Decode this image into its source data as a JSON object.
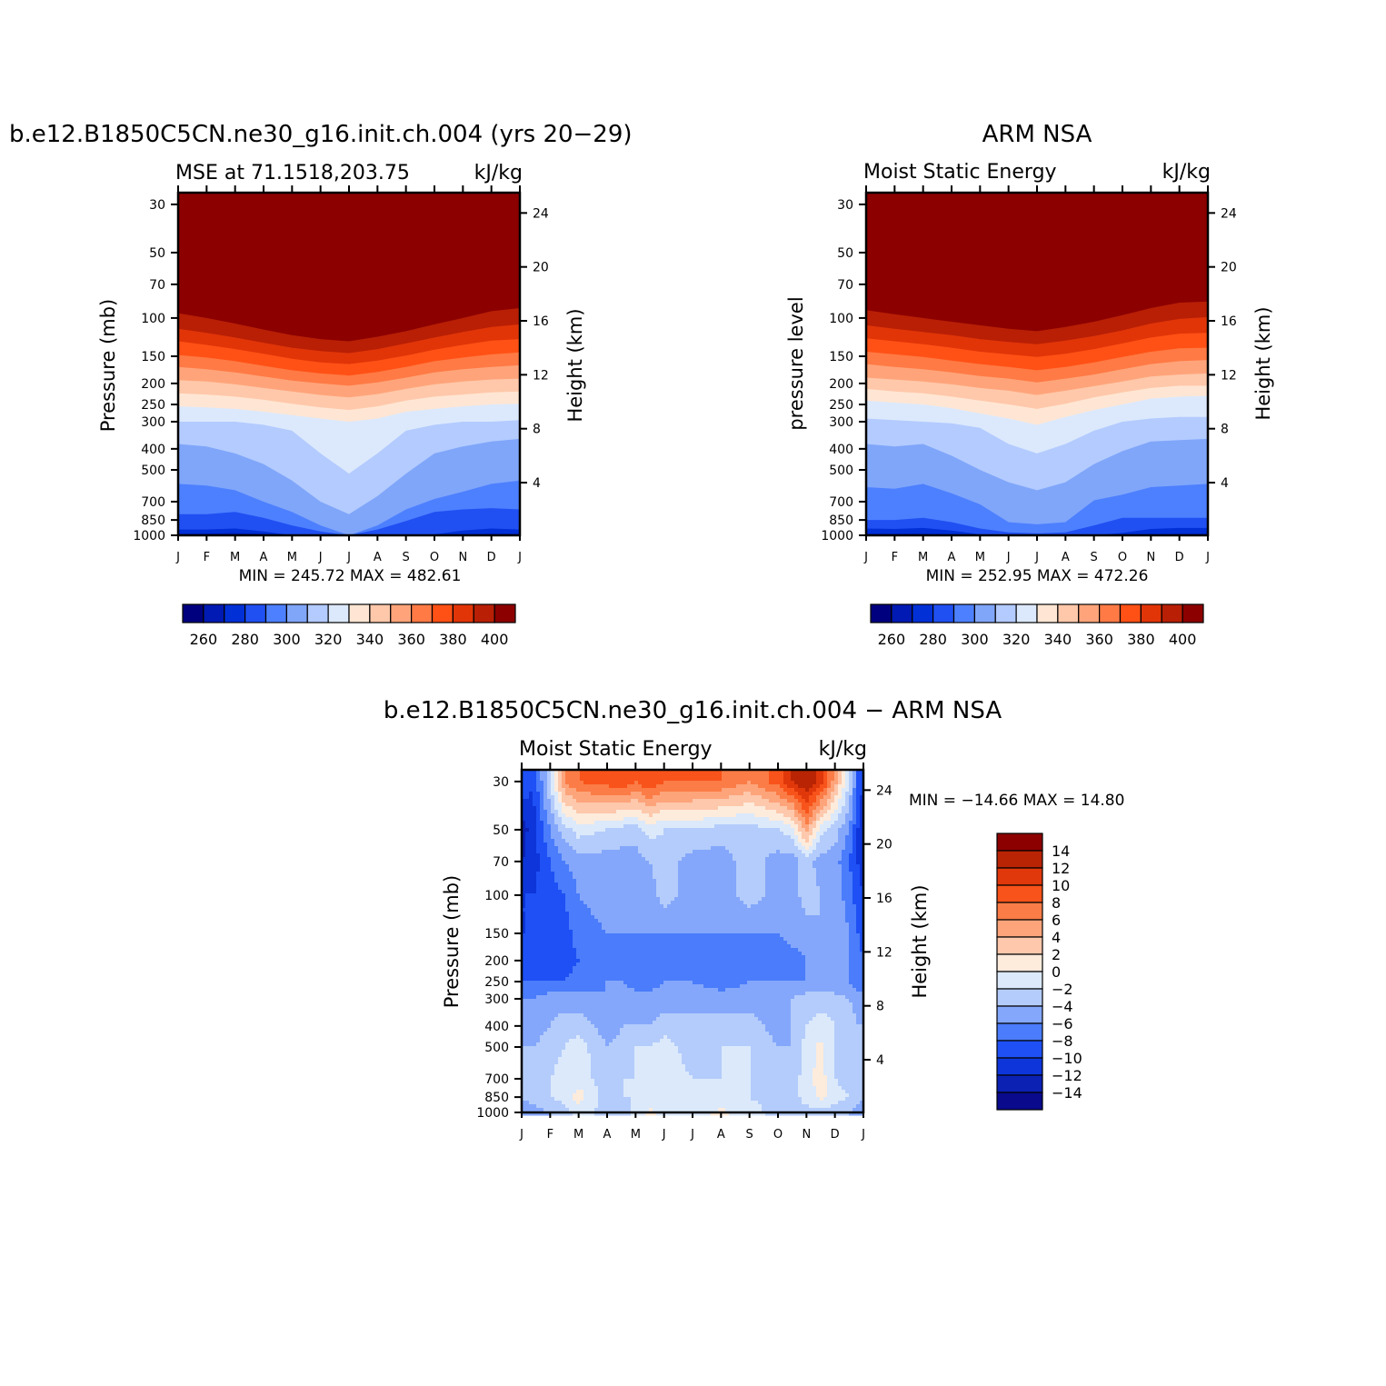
{
  "chart_data": [
    {
      "type": "heatmap",
      "panel": "model",
      "title": "b.e12.B1850C5CN.ne30_g16.init.ch.004 (yrs 20−29)",
      "subtitle_left": "MSE at 71.1518,203.75",
      "subtitle_right": "kJ/kg",
      "ylabel": "Pressure (mb)",
      "ylabel_right": "Height (km)",
      "x_ticks": [
        "J",
        "F",
        "M",
        "A",
        "M",
        "J",
        "J",
        "A",
        "S",
        "O",
        "N",
        "D",
        "J"
      ],
      "y_ticks": [
        "30",
        "50",
        "70",
        "100",
        "150",
        "200",
        "250",
        "300",
        "400",
        "500",
        "700",
        "850",
        "1000"
      ],
      "y2_ticks": [
        "24",
        "20",
        "16",
        "12",
        "8",
        "4"
      ],
      "stats": "MIN =  245.72 MAX =  482.61",
      "colorbar_orientation": "horizontal",
      "colorbar_labels": [
        "260",
        "280",
        "300",
        "320",
        "340",
        "360",
        "380",
        "400"
      ],
      "levels": [
        260,
        270,
        280,
        290,
        300,
        310,
        320,
        330,
        340,
        350,
        360,
        370,
        380,
        390,
        400
      ],
      "boundaries_pressure": [
        [
          1000,
          995,
          990,
          995,
          1000,
          1000,
          1000,
          1000,
          1000,
          1000,
          1000,
          998,
          995
        ],
        [
          985,
          982,
          978,
          985,
          1000,
          1000,
          1000,
          1000,
          1000,
          1000,
          990,
          985,
          985
        ],
        [
          940,
          940,
          930,
          960,
          1000,
          1000,
          1000,
          1000,
          1000,
          990,
          950,
          930,
          940
        ],
        [
          800,
          800,
          780,
          830,
          900,
          960,
          1000,
          940,
          860,
          780,
          760,
          750,
          760
        ],
        [
          580,
          590,
          620,
          700,
          780,
          900,
          1000,
          900,
          760,
          680,
          630,
          580,
          560
        ],
        [
          380,
          390,
          420,
          470,
          560,
          700,
          800,
          660,
          520,
          420,
          390,
          370,
          360
        ],
        [
          300,
          300,
          300,
          310,
          330,
          420,
          520,
          420,
          330,
          310,
          300,
          300,
          295
        ],
        [
          255,
          258,
          262,
          270,
          280,
          290,
          300,
          290,
          270,
          262,
          255,
          250,
          248
        ],
        [
          222,
          225,
          230,
          238,
          248,
          258,
          265,
          255,
          240,
          230,
          225,
          220,
          218
        ],
        [
          193,
          196,
          202,
          210,
          218,
          226,
          232,
          224,
          212,
          202,
          196,
          192,
          190
        ],
        [
          168,
          172,
          178,
          186,
          194,
          200,
          205,
          198,
          188,
          178,
          172,
          168,
          165
        ],
        [
          148,
          152,
          158,
          166,
          174,
          180,
          184,
          177,
          168,
          158,
          152,
          147,
          144
        ],
        [
          128,
          133,
          139,
          146,
          154,
          160,
          163,
          157,
          149,
          140,
          133,
          127,
          125
        ],
        [
          112,
          117,
          123,
          130,
          137,
          142,
          145,
          139,
          131,
          123,
          116,
          110,
          107
        ],
        [
          95,
          100,
          106,
          113,
          120,
          125,
          128,
          122,
          115,
          107,
          100,
          93,
          90
        ],
        [
          82,
          87,
          93,
          100,
          106,
          111,
          113,
          108,
          101,
          93,
          86,
          80,
          77
        ],
        [
          62,
          66,
          71,
          77,
          83,
          88,
          90,
          86,
          79,
          72,
          67,
          62,
          59
        ]
      ]
    },
    {
      "type": "heatmap",
      "panel": "obs",
      "title": "ARM NSA",
      "subtitle_left": "Moist Static Energy",
      "subtitle_right": "kJ/kg",
      "ylabel": "pressure level",
      "ylabel_right": "Height (km)",
      "x_ticks": [
        "J",
        "F",
        "M",
        "A",
        "M",
        "J",
        "J",
        "A",
        "S",
        "O",
        "N",
        "D",
        "J"
      ],
      "y_ticks": [
        "30",
        "50",
        "70",
        "100",
        "150",
        "200",
        "250",
        "300",
        "400",
        "500",
        "700",
        "850",
        "1000"
      ],
      "y2_ticks": [
        "24",
        "20",
        "16",
        "12",
        "8",
        "4"
      ],
      "stats": "MIN =  252.95 MAX =  472.26",
      "colorbar_orientation": "horizontal",
      "colorbar_labels": [
        "260",
        "280",
        "300",
        "320",
        "340",
        "360",
        "380",
        "400"
      ],
      "levels": [
        260,
        270,
        280,
        290,
        300,
        310,
        320,
        330,
        340,
        350,
        360,
        370,
        380,
        390,
        400
      ],
      "boundaries_pressure": [
        [
          1000,
          1000,
          998,
          1000,
          1000,
          1000,
          1000,
          1000,
          1000,
          1000,
          1000,
          1000,
          1000
        ],
        [
          985,
          985,
          985,
          990,
          1000,
          1000,
          1000,
          1000,
          1000,
          1000,
          990,
          985,
          985
        ],
        [
          930,
          935,
          925,
          950,
          990,
          1000,
          1000,
          1000,
          1000,
          975,
          935,
          925,
          925
        ],
        [
          850,
          850,
          830,
          870,
          930,
          970,
          980,
          970,
          900,
          830,
          830,
          830,
          830
        ],
        [
          600,
          610,
          580,
          640,
          720,
          870,
          890,
          870,
          690,
          650,
          600,
          590,
          580
        ],
        [
          380,
          390,
          380,
          430,
          500,
          570,
          620,
          570,
          470,
          410,
          370,
          365,
          360
        ],
        [
          290,
          295,
          300,
          305,
          320,
          380,
          420,
          380,
          330,
          300,
          290,
          285,
          285
        ],
        [
          240,
          245,
          250,
          260,
          275,
          290,
          310,
          285,
          265,
          250,
          235,
          230,
          228
        ],
        [
          212,
          218,
          222,
          230,
          240,
          250,
          262,
          248,
          232,
          220,
          210,
          205,
          205
        ],
        [
          188,
          192,
          196,
          202,
          210,
          216,
          226,
          216,
          206,
          196,
          186,
          182,
          180
        ],
        [
          163,
          168,
          172,
          178,
          185,
          190,
          198,
          190,
          182,
          172,
          163,
          158,
          156
        ],
        [
          143,
          147,
          151,
          157,
          163,
          168,
          174,
          168,
          160,
          151,
          143,
          138,
          137
        ],
        [
          124,
          128,
          132,
          137,
          143,
          147,
          151,
          146,
          139,
          131,
          123,
          118,
          117
        ],
        [
          108,
          112,
          116,
          120,
          125,
          129,
          132,
          127,
          121,
          114,
          106,
          101,
          99
        ],
        [
          92,
          96,
          100,
          104,
          108,
          112,
          115,
          110,
          104,
          97,
          90,
          85,
          84
        ],
        [
          81,
          84,
          86,
          88,
          92,
          96,
          100,
          95,
          89,
          82,
          76,
          74,
          73
        ],
        [
          68,
          71,
          73,
          75,
          78,
          82,
          85,
          80,
          75,
          70,
          66,
          64,
          63
        ]
      ]
    },
    {
      "type": "heatmap",
      "panel": "difference",
      "title": "b.e12.B1850C5CN.ne30_g16.init.ch.004 − ARM NSA",
      "subtitle_left": "Moist Static Energy",
      "subtitle_right": "kJ/kg",
      "ylabel": "Pressure (mb)",
      "ylabel_right": "Height (km)",
      "x_ticks": [
        "J",
        "F",
        "M",
        "A",
        "M",
        "J",
        "J",
        "A",
        "S",
        "O",
        "N",
        "D",
        "J"
      ],
      "y_ticks": [
        "30",
        "50",
        "70",
        "100",
        "150",
        "200",
        "250",
        "300",
        "400",
        "500",
        "700",
        "850",
        "1000"
      ],
      "y2_ticks": [
        "24",
        "20",
        "16",
        "12",
        "8",
        "4"
      ],
      "stats": "MIN = −14.66 MAX =   14.80",
      "colorbar_orientation": "vertical",
      "colorbar_labels": [
        "14",
        "12",
        "10",
        "8",
        "6",
        "4",
        "2",
        "0",
        "−2",
        "−4",
        "−6",
        "−8",
        "−10",
        "−12",
        "−14"
      ],
      "levels": [
        -14,
        -12,
        -10,
        -8,
        -6,
        -4,
        -2,
        0,
        2,
        4,
        6,
        8,
        10,
        12,
        14
      ],
      "months": [
        0,
        0.4,
        1,
        1.5,
        2,
        3,
        3.6,
        4,
        4.5,
        5,
        6,
        7,
        8,
        9,
        9.5,
        10,
        10.5,
        11,
        11.5,
        11.8,
        12
      ],
      "pressures": [
        30,
        50,
        70,
        100,
        150,
        200,
        250,
        300,
        400,
        500,
        700,
        850,
        1000
      ],
      "values": [
        [
          -8,
          -10,
          -2,
          6,
          8,
          9,
          10,
          8,
          10,
          8,
          8,
          8,
          6,
          9,
          12,
          14,
          11,
          5,
          -2,
          -8,
          -10
        ],
        [
          -13,
          -11,
          -6,
          -3,
          -1,
          -2,
          -3,
          -3,
          -1,
          -2,
          -2,
          -3,
          -3,
          -2,
          -1,
          5,
          -1,
          -3,
          -6,
          -10,
          -12
        ],
        [
          -12,
          -11,
          -8,
          -6,
          -5,
          -5,
          -5,
          -5,
          -4,
          -3,
          -5,
          -5,
          -3,
          -5,
          -5,
          -3,
          -5,
          -5,
          -8,
          -10,
          -11
        ],
        [
          -10,
          -10,
          -9,
          -8,
          -6,
          -5,
          -5,
          -5,
          -5,
          -3,
          -5,
          -5,
          -3,
          -5,
          -5,
          -3,
          -4,
          -5,
          -7,
          -9,
          -10
        ],
        [
          -10,
          -10,
          -9,
          -9,
          -7,
          -6,
          -6,
          -6,
          -6,
          -6,
          -6,
          -6,
          -6,
          -6,
          -5,
          -5,
          -4,
          -4,
          -6,
          -8,
          -9
        ],
        [
          -9,
          -9,
          -9,
          -9,
          -8,
          -7,
          -6,
          -8,
          -7,
          -7,
          -7,
          -8,
          -7,
          -8,
          -7,
          -6,
          -5,
          -5,
          -6,
          -7,
          -8
        ],
        [
          -8,
          -8,
          -8,
          -8,
          -7,
          -6,
          -6,
          -7,
          -7,
          -6,
          -6,
          -7,
          -6,
          -6,
          -6,
          -6,
          -6,
          -6,
          -6,
          -7,
          -7
        ],
        [
          -6,
          -6,
          -5,
          -5,
          -5,
          -6,
          -5,
          -5,
          -5,
          -5,
          -5,
          -5,
          -5,
          -5,
          -4,
          -3,
          -3,
          -3,
          -4,
          -5,
          -5
        ],
        [
          -5,
          -5,
          -4,
          -3,
          -3,
          -5,
          -4,
          -4,
          -4,
          -3,
          -3,
          -3,
          -3,
          -5,
          -4,
          -2,
          -1,
          -2,
          -3,
          -4,
          -4
        ],
        [
          -4,
          -4,
          -3,
          -2,
          -1,
          -4,
          -3,
          -2,
          -2,
          -1,
          -3,
          -2,
          -2,
          -4,
          -4,
          -1,
          0.5,
          -2,
          -3,
          -3,
          -3
        ],
        [
          -4,
          -3,
          -2,
          -1,
          -1,
          -3,
          -2,
          -2,
          -1,
          -1,
          -2,
          -2,
          -2,
          -3,
          -3,
          -1,
          1,
          -2,
          -3,
          -3,
          -3
        ],
        [
          -4,
          -3,
          -2,
          -1,
          1,
          -3,
          -2,
          -2,
          -1,
          -1,
          -2,
          -1,
          -2,
          -3,
          -3,
          -1,
          0.5,
          -1,
          -2,
          -3,
          -4
        ],
        [
          -5,
          -5,
          -4,
          -3,
          -1,
          -3,
          -3,
          -1,
          0.5,
          -1,
          -1,
          0.5,
          -1,
          -3,
          -3,
          -3,
          -3,
          -3,
          -4,
          -5,
          -5
        ]
      ]
    }
  ],
  "palettes": {
    "mse": [
      "#00007f",
      "#001ab3",
      "#0030d6",
      "#2050f2",
      "#4d80ff",
      "#80a6fa",
      "#b3cbff",
      "#dce9fc",
      "#ffe6d4",
      "#ffc8aa",
      "#ffa47a",
      "#ff7a45",
      "#ff5115",
      "#e13508",
      "#b81f05",
      "#8c0000"
    ],
    "diff": [
      "#0a0a8c",
      "#0b21b4",
      "#0d35d9",
      "#1e50f5",
      "#4a7cfb",
      "#84a7fb",
      "#b4ccfb",
      "#dbe9fb",
      "#fdebdc",
      "#fdc8ac",
      "#fda47b",
      "#fb7c46",
      "#f8531a",
      "#e0380b",
      "#b92404",
      "#8c0000"
    ]
  }
}
